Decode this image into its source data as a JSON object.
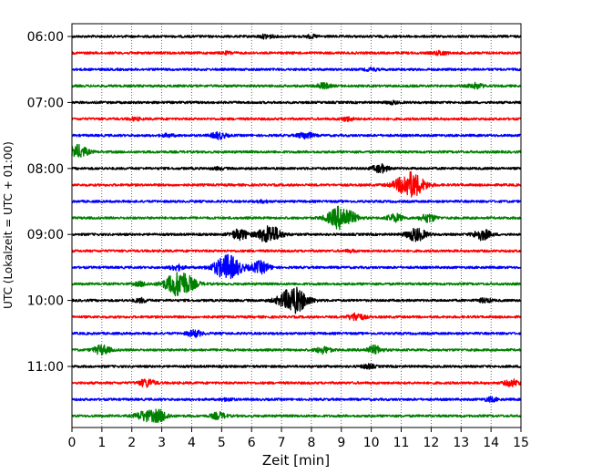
{
  "chart_data": {
    "type": "line",
    "title": "",
    "xlabel": "Zeit  [min]",
    "ylabel": "UTC (Lokalzeit = UTC + 01:00)",
    "xlim": [
      0,
      15
    ],
    "x_ticks": [
      "0",
      "1",
      "2",
      "3",
      "4",
      "5",
      "6",
      "7",
      "8",
      "9",
      "10",
      "11",
      "12",
      "13",
      "14",
      "15"
    ],
    "y_ticks": [
      "06:00",
      "07:00",
      "08:00",
      "09:00",
      "10:00",
      "11:00"
    ],
    "grid": "vertical dotted",
    "trace_colors": [
      "#000000",
      "#ff0000",
      "#0000ff",
      "#008000"
    ],
    "traces": [
      {
        "time": "06:00",
        "color": "black",
        "events": [
          [
            6.5,
            0.3
          ],
          [
            8.0,
            0.2
          ]
        ]
      },
      {
        "time": "06:15",
        "color": "red",
        "events": [
          [
            12.3,
            0.3
          ],
          [
            5.2,
            0.15
          ]
        ]
      },
      {
        "time": "06:30",
        "color": "blue",
        "events": [
          [
            10.0,
            0.2
          ]
        ]
      },
      {
        "time": "06:45",
        "color": "green",
        "events": [
          [
            8.4,
            0.4
          ],
          [
            13.5,
            0.4
          ]
        ]
      },
      {
        "time": "07:00",
        "color": "black",
        "events": [
          [
            10.7,
            0.2
          ]
        ]
      },
      {
        "time": "07:15",
        "color": "red",
        "events": [
          [
            9.2,
            0.3
          ],
          [
            2.1,
            0.2
          ]
        ]
      },
      {
        "time": "07:30",
        "color": "blue",
        "events": [
          [
            4.9,
            0.5
          ],
          [
            7.8,
            0.5
          ],
          [
            3.2,
            0.2
          ]
        ]
      },
      {
        "time": "07:45",
        "color": "green",
        "events": [
          [
            0.2,
            1.0
          ]
        ]
      },
      {
        "time": "08:00",
        "color": "black",
        "events": [
          [
            10.3,
            0.6
          ],
          [
            4.9,
            0.15
          ]
        ]
      },
      {
        "time": "08:15",
        "color": "red",
        "events": [
          [
            11.3,
            2.0
          ]
        ]
      },
      {
        "time": "08:30",
        "color": "blue",
        "events": [
          [
            6.4,
            0.15
          ]
        ]
      },
      {
        "time": "08:45",
        "color": "green",
        "events": [
          [
            9.0,
            1.8
          ],
          [
            10.8,
            0.6
          ],
          [
            11.9,
            0.6
          ]
        ]
      },
      {
        "time": "09:00",
        "color": "black",
        "events": [
          [
            5.6,
            0.8
          ],
          [
            6.6,
            1.4
          ],
          [
            11.5,
            1.0
          ],
          [
            13.7,
            0.8
          ]
        ]
      },
      {
        "time": "09:15",
        "color": "red",
        "events": [
          [
            9.3,
            0.15
          ]
        ]
      },
      {
        "time": "09:30",
        "color": "blue",
        "events": [
          [
            5.2,
            1.9
          ],
          [
            6.3,
            0.9
          ],
          [
            3.5,
            0.4
          ]
        ]
      },
      {
        "time": "09:45",
        "color": "green",
        "events": [
          [
            3.6,
            2.0
          ],
          [
            2.3,
            0.3
          ]
        ]
      },
      {
        "time": "10:00",
        "color": "black",
        "events": [
          [
            7.4,
            2.0
          ],
          [
            2.3,
            0.3
          ],
          [
            13.8,
            0.3
          ]
        ]
      },
      {
        "time": "10:15",
        "color": "red",
        "events": [
          [
            9.5,
            0.6
          ]
        ]
      },
      {
        "time": "10:30",
        "color": "blue",
        "events": [
          [
            4.1,
            0.5
          ]
        ]
      },
      {
        "time": "10:45",
        "color": "green",
        "events": [
          [
            1.0,
            0.7
          ],
          [
            8.4,
            0.5
          ],
          [
            10.1,
            0.6
          ]
        ]
      },
      {
        "time": "11:00",
        "color": "black",
        "events": [
          [
            9.9,
            0.3
          ]
        ]
      },
      {
        "time": "11:15",
        "color": "red",
        "events": [
          [
            2.5,
            0.6
          ],
          [
            14.7,
            0.5
          ]
        ]
      },
      {
        "time": "11:30",
        "color": "blue",
        "events": [
          [
            14.0,
            0.3
          ],
          [
            5.2,
            0.2
          ]
        ]
      },
      {
        "time": "11:45",
        "color": "green",
        "events": [
          [
            2.4,
            0.7
          ],
          [
            2.9,
            0.9
          ],
          [
            4.9,
            0.5
          ]
        ]
      }
    ]
  }
}
